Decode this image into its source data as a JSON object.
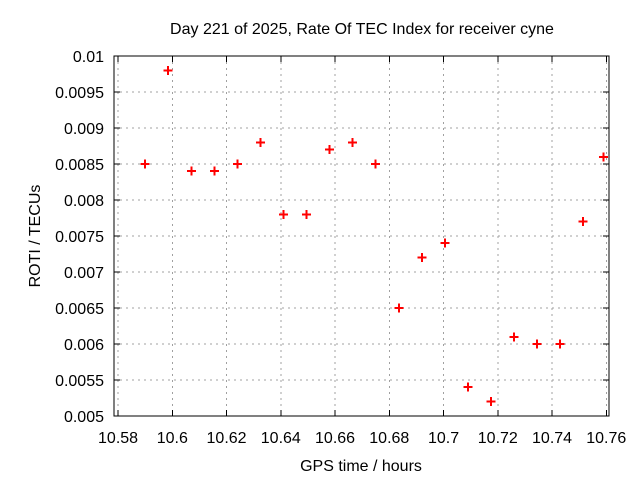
{
  "chart_data": {
    "type": "scatter",
    "title": "Day 221 of 2025, Rate Of TEC Index for receiver cyne",
    "xlabel": "GPS time / hours",
    "ylabel": "ROTI / TECUs",
    "legend": "none",
    "grid": true,
    "marker": "plus",
    "marker_color": "#ff0000",
    "grid_color": "#a0a0a0",
    "axis_color": "#000000",
    "background_color": "#ffffff",
    "xlim": [
      10.5785,
      10.761
    ],
    "ylim": [
      0.005,
      0.01
    ],
    "x_ticks": [
      10.58,
      10.6,
      10.62,
      10.64,
      10.66,
      10.68,
      10.7,
      10.72,
      10.74,
      10.76
    ],
    "x_tick_labels": [
      "10.58",
      "10.6",
      "10.62",
      "10.64",
      "10.66",
      "10.68",
      "10.7",
      "10.72",
      "10.74",
      "10.76"
    ],
    "y_ticks": [
      0.005,
      0.0055,
      0.006,
      0.0065,
      0.007,
      0.0075,
      0.008,
      0.0085,
      0.009,
      0.0095,
      0.01
    ],
    "y_tick_labels": [
      "0.005",
      "0.0055",
      "0.006",
      "0.0065",
      "0.007",
      "0.0075",
      "0.008",
      "0.0085",
      "0.009",
      "0.0095",
      "0.01"
    ],
    "points": [
      [
        10.59,
        0.0085
      ],
      [
        10.5985,
        0.0098
      ],
      [
        10.607,
        0.0084
      ],
      [
        10.6155,
        0.0084
      ],
      [
        10.624,
        0.0085
      ],
      [
        10.6325,
        0.0088
      ],
      [
        10.641,
        0.0078
      ],
      [
        10.6495,
        0.0078
      ],
      [
        10.658,
        0.0087
      ],
      [
        10.6665,
        0.0088
      ],
      [
        10.675,
        0.0085
      ],
      [
        10.6835,
        0.0065
      ],
      [
        10.692,
        0.0072
      ],
      [
        10.7005,
        0.0074
      ],
      [
        10.709,
        0.0054
      ],
      [
        10.7175,
        0.0052
      ],
      [
        10.726,
        0.0061
      ],
      [
        10.7345,
        0.006
      ],
      [
        10.743,
        0.006
      ],
      [
        10.7515,
        0.0077
      ],
      [
        10.759,
        0.0086
      ]
    ]
  }
}
